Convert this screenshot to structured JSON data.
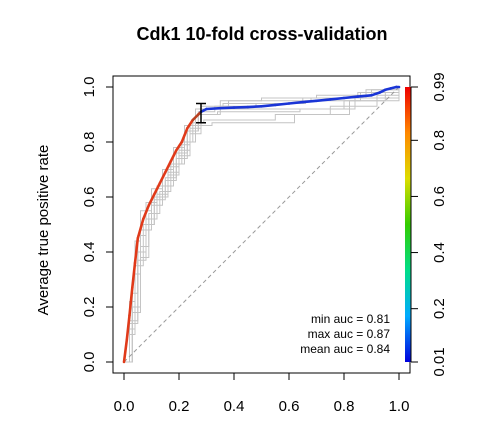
{
  "chart_data": {
    "type": "line",
    "title": "Cdk1 10-fold cross-validation",
    "xlabel": "",
    "ylabel": "Average true positive rate",
    "xlim": [
      0,
      1
    ],
    "ylim": [
      0,
      1
    ],
    "x_ticks": [
      "0.0",
      "0.2",
      "0.4",
      "0.6",
      "0.8",
      "1.0"
    ],
    "y_ticks": [
      "0.0",
      "0.2",
      "0.4",
      "0.6",
      "0.8",
      "1.0"
    ],
    "colorbar": {
      "ticks": [
        "0.01",
        "0.2",
        "0.4",
        "0.6",
        "0.8",
        "0.99"
      ],
      "colors": [
        "#0000dd",
        "#00aaff",
        "#00dd88",
        "#33cc00",
        "#dddd00",
        "#ff8800",
        "#ee0000"
      ]
    },
    "annotations": [
      "min auc = 0.81",
      "max auc = 0.87",
      "mean auc = 0.84"
    ],
    "diagonal": [
      [
        0,
        0
      ],
      [
        1,
        1
      ]
    ],
    "error_bar": {
      "x": 0.28,
      "y_low": 0.87,
      "y_high": 0.94
    },
    "series": [
      {
        "color": "red-to-blue gradient",
        "x": [
          0.0,
          0.01,
          0.02,
          0.03,
          0.04,
          0.05,
          0.07,
          0.09,
          0.11,
          0.13,
          0.15,
          0.17,
          0.19,
          0.21,
          0.23,
          0.25,
          0.27,
          0.28,
          0.3,
          0.35,
          0.4,
          0.45,
          0.5,
          0.55,
          0.6,
          0.65,
          0.7,
          0.75,
          0.8,
          0.85,
          0.9,
          0.93,
          0.95,
          0.97,
          0.99,
          1.0
        ],
        "y": [
          0.0,
          0.08,
          0.17,
          0.27,
          0.36,
          0.45,
          0.52,
          0.57,
          0.61,
          0.65,
          0.69,
          0.73,
          0.77,
          0.8,
          0.85,
          0.88,
          0.9,
          0.91,
          0.92,
          0.923,
          0.925,
          0.927,
          0.93,
          0.935,
          0.94,
          0.945,
          0.95,
          0.955,
          0.96,
          0.965,
          0.97,
          0.98,
          0.99,
          0.995,
          1.0,
          1.0
        ]
      }
    ],
    "fold_curves": [
      {
        "x": [
          0,
          0.02,
          0.04,
          0.06,
          0.1,
          0.14,
          0.18,
          0.22,
          0.26,
          0.3,
          0.45,
          0.6,
          0.8,
          0.95,
          1.0
        ],
        "y": [
          0,
          0.22,
          0.44,
          0.55,
          0.63,
          0.7,
          0.78,
          0.86,
          0.92,
          0.92,
          0.92,
          0.92,
          0.95,
          0.98,
          1.0
        ]
      },
      {
        "x": [
          0,
          0.02,
          0.05,
          0.08,
          0.12,
          0.16,
          0.2,
          0.24,
          0.28,
          0.35,
          0.5,
          0.7,
          0.9,
          1.0
        ],
        "y": [
          0,
          0.15,
          0.4,
          0.52,
          0.6,
          0.68,
          0.75,
          0.83,
          0.9,
          0.95,
          0.96,
          0.97,
          0.99,
          1.0
        ]
      },
      {
        "x": [
          0,
          0.03,
          0.06,
          0.09,
          0.13,
          0.17,
          0.21,
          0.25,
          0.29,
          0.4,
          0.55,
          0.75,
          0.92,
          1.0
        ],
        "y": [
          0,
          0.2,
          0.42,
          0.54,
          0.62,
          0.72,
          0.8,
          0.87,
          0.88,
          0.88,
          0.9,
          0.93,
          0.97,
          1.0
        ]
      },
      {
        "x": [
          0,
          0.02,
          0.04,
          0.07,
          0.11,
          0.15,
          0.19,
          0.23,
          0.27,
          0.33,
          0.48,
          0.65,
          0.85,
          1.0
        ],
        "y": [
          0,
          0.12,
          0.35,
          0.5,
          0.6,
          0.66,
          0.74,
          0.84,
          0.91,
          0.93,
          0.94,
          0.96,
          0.98,
          1.0
        ]
      },
      {
        "x": [
          0,
          0.03,
          0.05,
          0.08,
          0.12,
          0.16,
          0.2,
          0.24,
          0.28,
          0.38,
          0.52,
          0.68,
          0.88,
          1.0
        ],
        "y": [
          0,
          0.25,
          0.46,
          0.58,
          0.64,
          0.71,
          0.79,
          0.86,
          0.93,
          0.95,
          0.95,
          0.96,
          0.99,
          1.0
        ]
      },
      {
        "x": [
          0,
          0.02,
          0.04,
          0.06,
          0.1,
          0.14,
          0.18,
          0.22,
          0.26,
          0.32,
          0.46,
          0.62,
          0.82,
          1.0
        ],
        "y": [
          0,
          0.1,
          0.32,
          0.48,
          0.57,
          0.64,
          0.72,
          0.8,
          0.86,
          0.87,
          0.87,
          0.9,
          0.95,
          1.0
        ]
      },
      {
        "x": [
          0,
          0.03,
          0.06,
          0.09,
          0.12,
          0.16,
          0.2,
          0.24,
          0.28,
          0.36,
          0.5,
          0.66,
          0.86,
          1.0
        ],
        "y": [
          0,
          0.18,
          0.38,
          0.52,
          0.61,
          0.69,
          0.77,
          0.85,
          0.92,
          0.94,
          0.94,
          0.95,
          0.98,
          1.0
        ]
      },
      {
        "x": [
          0,
          0.02,
          0.05,
          0.08,
          0.11,
          0.15,
          0.19,
          0.23,
          0.27,
          0.34,
          0.48,
          0.64,
          0.84,
          1.0
        ],
        "y": [
          0,
          0.14,
          0.37,
          0.5,
          0.59,
          0.67,
          0.76,
          0.84,
          0.9,
          0.91,
          0.91,
          0.92,
          0.96,
          1.0
        ]
      }
    ]
  }
}
